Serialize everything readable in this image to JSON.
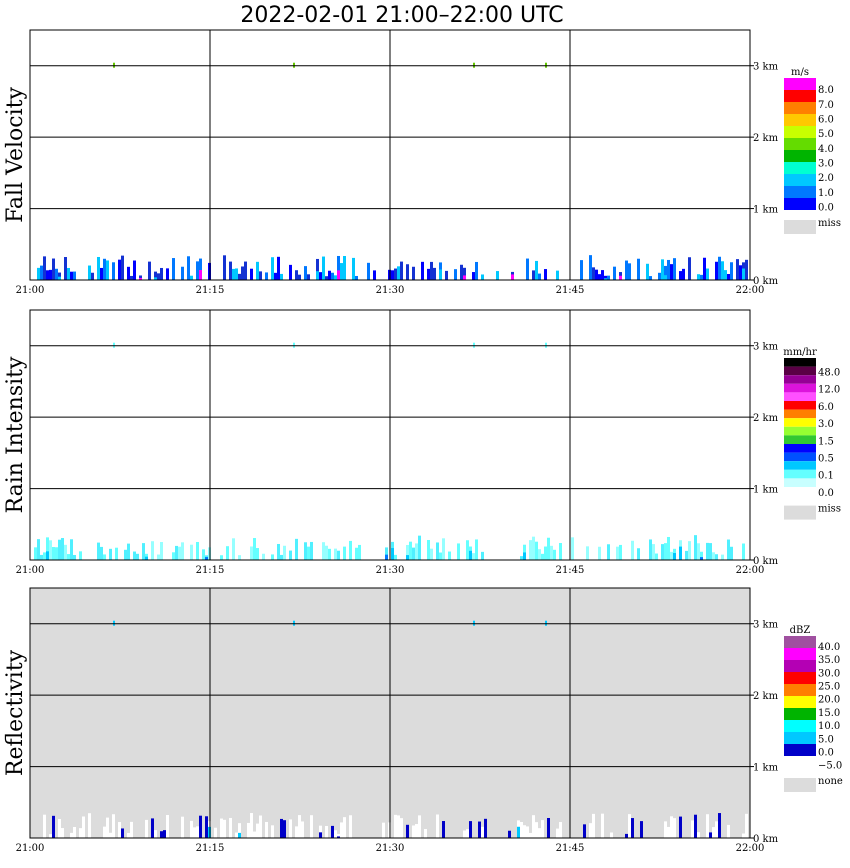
{
  "title": "2022-02-01   21:00–22:00 UTC",
  "colors": {
    "panel_background": "#ffffff",
    "reflectivity_background": "#dcdcdc",
    "grid_line": "#000000",
    "missing": "#dcdcdc"
  },
  "chart_data": [
    {
      "type": "heatmap",
      "ylabel": "Fall Velocity",
      "xlabel": "",
      "x_ticks": [
        "21:00",
        "21:15",
        "21:30",
        "21:45",
        "22:00"
      ],
      "y_ticks": [
        "0 km",
        "1 km",
        "2 km",
        "3 km"
      ],
      "xlim": [
        "21:00",
        "22:00"
      ],
      "ylim_km": [
        0,
        3.5
      ],
      "grid": true,
      "legend": "right",
      "colorbar": {
        "unit": "m/s",
        "labels": [
          "8.0",
          "7.0",
          "6.0",
          "5.0",
          "4.0",
          "3.0",
          "2.0",
          "1.0",
          "0.0"
        ],
        "colors": [
          "#ff00ff",
          "#ff0000",
          "#ff7f00",
          "#ffc800",
          "#c8ff00",
          "#64dc00",
          "#00b400",
          "#00ffd2",
          "#00c8ff",
          "#0078ff",
          "#0000ff"
        ],
        "miss_label": "miss"
      },
      "echo": {
        "top_km": 0.35,
        "main_colors": [
          "#0000ff",
          "#1432d2",
          "#0078ff",
          "#00c8ff"
        ],
        "accent_colors": [
          "#ff00ff",
          "#00c8ff"
        ],
        "bright_level_fraction": 0.06,
        "trace_height_km": 3.0,
        "trace_times": [
          "21:07",
          "21:22",
          "21:37",
          "21:43"
        ],
        "trace_color": "#64c800"
      }
    },
    {
      "type": "heatmap",
      "ylabel": "Rain Intensity",
      "xlabel": "",
      "x_ticks": [
        "21:00",
        "21:15",
        "21:30",
        "21:45",
        "22:00"
      ],
      "y_ticks": [
        "0 km",
        "1 km",
        "2 km",
        "3 km"
      ],
      "xlim": [
        "21:00",
        "22:00"
      ],
      "ylim_km": [
        0,
        3.5
      ],
      "grid": true,
      "legend": "right",
      "colorbar": {
        "unit": "mm/hr",
        "labels": [
          "48.0",
          "12.0",
          "6.0",
          "3.0",
          "1.5",
          "0.5",
          "0.1",
          "0.0"
        ],
        "colors": [
          "#000000",
          "#5a0046",
          "#960096",
          "#dc14dc",
          "#ff50ff",
          "#ff0000",
          "#ff7f00",
          "#ffff00",
          "#96ff32",
          "#32c832",
          "#0000ff",
          "#0050ff",
          "#00c8ff",
          "#64ffff",
          "#c8ffff",
          "#ffffff"
        ],
        "miss_label": "miss"
      },
      "echo": {
        "top_km": 0.35,
        "main_colors": [
          "#64ffff",
          "#50f0ff",
          "#96ffff"
        ],
        "accent_colors": [
          "#00c8ff",
          "#0078ff"
        ],
        "bright_level_fraction": 0.05,
        "trace_height_km": 3.0,
        "trace_times": [
          "21:07",
          "21:22",
          "21:37",
          "21:43"
        ],
        "trace_color": "#64ffff"
      }
    },
    {
      "type": "heatmap",
      "ylabel": "Reflectivity",
      "xlabel": "",
      "x_ticks": [
        "21:00",
        "21:15",
        "21:30",
        "21:45",
        "22:00"
      ],
      "y_ticks": [
        "0 km",
        "1 km",
        "2 km",
        "3 km"
      ],
      "xlim": [
        "21:00",
        "22:00"
      ],
      "ylim_km": [
        0,
        3.5
      ],
      "grid": true,
      "legend": "right",
      "colorbar": {
        "unit": "dBZ",
        "labels": [
          "40.0",
          "35.0",
          "30.0",
          "25.0",
          "20.0",
          "15.0",
          "10.0",
          "5.0",
          "0.0",
          "−5.0"
        ],
        "colors": [
          "#a050a0",
          "#ff00ff",
          "#b400b4",
          "#ff0000",
          "#ff7f00",
          "#ffff00",
          "#00b400",
          "#00ffff",
          "#00c8ff",
          "#0000c8",
          "#ffffff"
        ],
        "miss_label": "none"
      },
      "echo": {
        "top_km": 0.35,
        "main_colors": [
          "#ffffff",
          "#ffffff",
          "#ffffff",
          "#0000c8"
        ],
        "accent_colors": [
          "#00c8ff",
          "#0000c8"
        ],
        "bright_level_fraction": 0.08,
        "trace_height_km": 3.0,
        "trace_times": [
          "21:07",
          "21:22",
          "21:37",
          "21:43"
        ],
        "trace_color": "#00c8ff"
      }
    }
  ]
}
